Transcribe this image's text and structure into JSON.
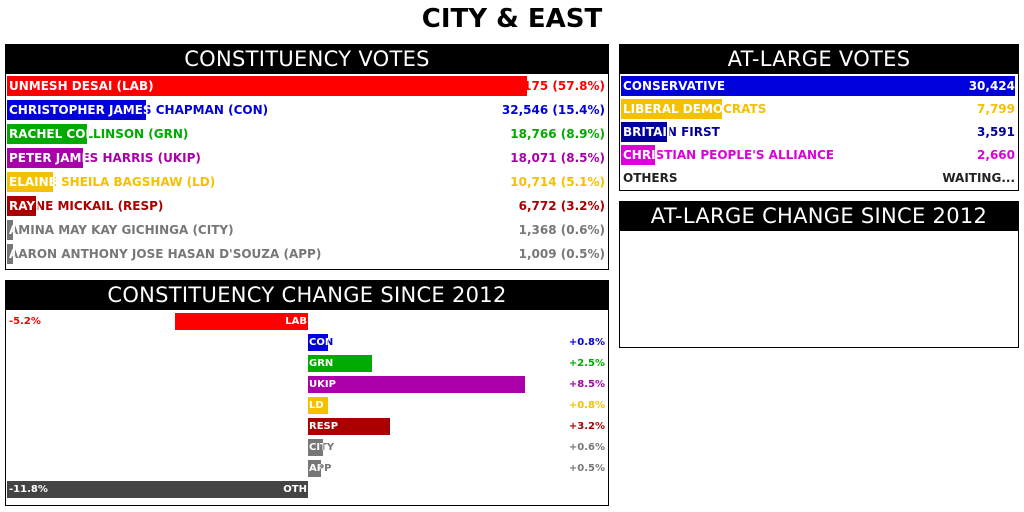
{
  "title": "CITY & EAST",
  "constituency": {
    "heading": "CONSTITUENCY VOTES",
    "candidates": [
      {
        "name": "UNMESH DESAI (LAB)",
        "value": "122,175 (57.8%)",
        "share": 57.8,
        "color": "#ff0000"
      },
      {
        "name": "CHRISTOPHER JAMES CHAPMAN (CON)",
        "value": "32,546 (15.4%)",
        "share": 15.4,
        "color": "#0000dd"
      },
      {
        "name": "RACHEL COLLINSON (GRN)",
        "value": "18,766 (8.9%)",
        "share": 8.9,
        "color": "#00aa00"
      },
      {
        "name": "PETER JAMES HARRIS (UKIP)",
        "value": "18,071 (8.5%)",
        "share": 8.5,
        "color": "#aa00aa"
      },
      {
        "name": "ELAINE SHEILA BAGSHAW (LD)",
        "value": "10,714 (5.1%)",
        "share": 5.1,
        "color": "#f5c000"
      },
      {
        "name": "RAYNE MICKAIL (RESP)",
        "value": "6,772 (3.2%)",
        "share": 3.2,
        "color": "#aa0000"
      },
      {
        "name": "AMINA MAY KAY GICHINGA (CITY)",
        "value": "1,368 (0.6%)",
        "share": 0.6,
        "color": "#777777"
      },
      {
        "name": "AARON ANTHONY JOSE HASAN D'SOUZA (APP)",
        "value": "1,009 (0.5%)",
        "share": 0.5,
        "color": "#777777"
      }
    ]
  },
  "at_large": {
    "heading": "AT-LARGE VOTES",
    "parties": [
      {
        "name": "CONSERVATIVE",
        "value": "30,424",
        "fill": 1.0,
        "color": "#0000dd"
      },
      {
        "name": "LIBERAL DEMOCRATS",
        "value": "7,799",
        "fill": 0.256,
        "color": "#f5c000"
      },
      {
        "name": "BRITAIN FIRST",
        "value": "3,591",
        "fill": 0.118,
        "color": "#000099"
      },
      {
        "name": "CHRISTIAN PEOPLE'S ALLIANCE",
        "value": "2,660",
        "fill": 0.087,
        "color": "#dd00dd"
      },
      {
        "name": "OTHERS",
        "value": "WAITING...",
        "fill": 0,
        "color": "#222222"
      }
    ]
  },
  "at_large_change": {
    "heading": "AT-LARGE CHANGE SINCE 2012"
  },
  "constituency_change": {
    "heading": "CONSTITUENCY CHANGE SINCE 2012",
    "items": [
      {
        "party": "LAB",
        "change": -5.2,
        "label": "-5.2%",
        "color": "#ff0000"
      },
      {
        "party": "CON",
        "change": 0.8,
        "label": "+0.8%",
        "color": "#0000dd"
      },
      {
        "party": "GRN",
        "change": 2.5,
        "label": "+2.5%",
        "color": "#00aa00"
      },
      {
        "party": "UKIP",
        "change": 8.5,
        "label": "+8.5%",
        "color": "#aa00aa"
      },
      {
        "party": "LD",
        "change": 0.8,
        "label": "+0.8%",
        "color": "#f5c000"
      },
      {
        "party": "RESP",
        "change": 3.2,
        "label": "+3.2%",
        "color": "#aa0000"
      },
      {
        "party": "CITY",
        "change": 0.6,
        "label": "+0.6%",
        "color": "#777777"
      },
      {
        "party": "APP",
        "change": 0.5,
        "label": "+0.5%",
        "color": "#777777"
      },
      {
        "party": "OTH",
        "change": -11.8,
        "label": "-11.8%",
        "color": "#444444"
      }
    ]
  }
}
